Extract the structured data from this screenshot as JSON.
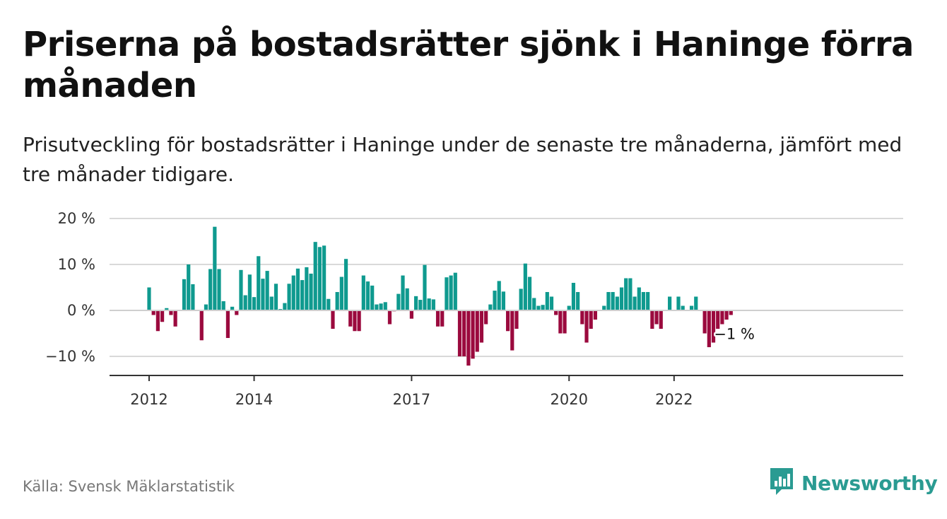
{
  "header": {
    "title": "Priserna på bostadsrätter sjönk i Haninge förra månaden",
    "subtitle": "Prisutveckling för bostadsrätter i Haninge under de senaste tre månaderna, jämfört med tre månader tidigare."
  },
  "footer": {
    "source": "Källa: Svensk Mäklarstatistik",
    "brand": "Newsworthy",
    "brand_icon": "bar-chart-logo-icon"
  },
  "colors": {
    "positive": "#0f9a8f",
    "negative": "#9b0a3e",
    "brand": "#2a9b92"
  },
  "chart_data": {
    "type": "bar",
    "x_start": "2012-01",
    "x_end": "2023-04",
    "x_tick_labels": [
      "2012",
      "2014",
      "2017",
      "2020",
      "2022"
    ],
    "y_tick_labels": [
      "20 %",
      "10 %",
      "0 %",
      "−10 %"
    ],
    "ylim": [
      -14,
      20
    ],
    "grid": true,
    "last_value_label": "−1 %",
    "series": [
      {
        "values": [
          5,
          -1,
          -4.5,
          -2.5,
          0.5,
          -1,
          -3.5,
          0,
          6.8,
          10,
          5.7,
          0,
          -6.5,
          1.3,
          9,
          18.2,
          9,
          2,
          -6,
          0.8,
          -1,
          8.8,
          3.3,
          7.8,
          2.9,
          11.8,
          6.9,
          8.6,
          3,
          5.8,
          0.3,
          1.6,
          5.8,
          7.6,
          9.1,
          6.6,
          9.4,
          8,
          14.9,
          13.8,
          14.1,
          2.5,
          -4,
          4,
          7.3,
          11.2,
          -3.5,
          -4.5,
          -4.5,
          7.6,
          6.3,
          5.4,
          1.3,
          1.5,
          1.8,
          -3,
          -0.2,
          3.6,
          7.6,
          4.8,
          -1.8,
          3.1,
          2.3,
          9.9,
          2.6,
          2.4,
          -3.5,
          -3.5,
          7.2,
          7.6,
          8.2,
          -10,
          -10,
          -12,
          -10.5,
          -9,
          -7,
          -3,
          1.3,
          4.3,
          6.4,
          4.1,
          -4.5,
          -8.7,
          -4,
          4.7,
          10.2,
          7.3,
          2.7,
          1,
          1.2,
          4,
          3,
          -1,
          -5,
          -5,
          1,
          6,
          4,
          -3,
          -7,
          -4,
          -2,
          0,
          1,
          4,
          4,
          3,
          5,
          7,
          7,
          3,
          5,
          4,
          4,
          -4,
          -3,
          -4,
          0,
          3,
          0,
          3,
          1,
          0,
          1,
          3,
          0,
          -5,
          -8,
          -7,
          -4,
          -3,
          -2,
          -1
        ]
      }
    ]
  }
}
